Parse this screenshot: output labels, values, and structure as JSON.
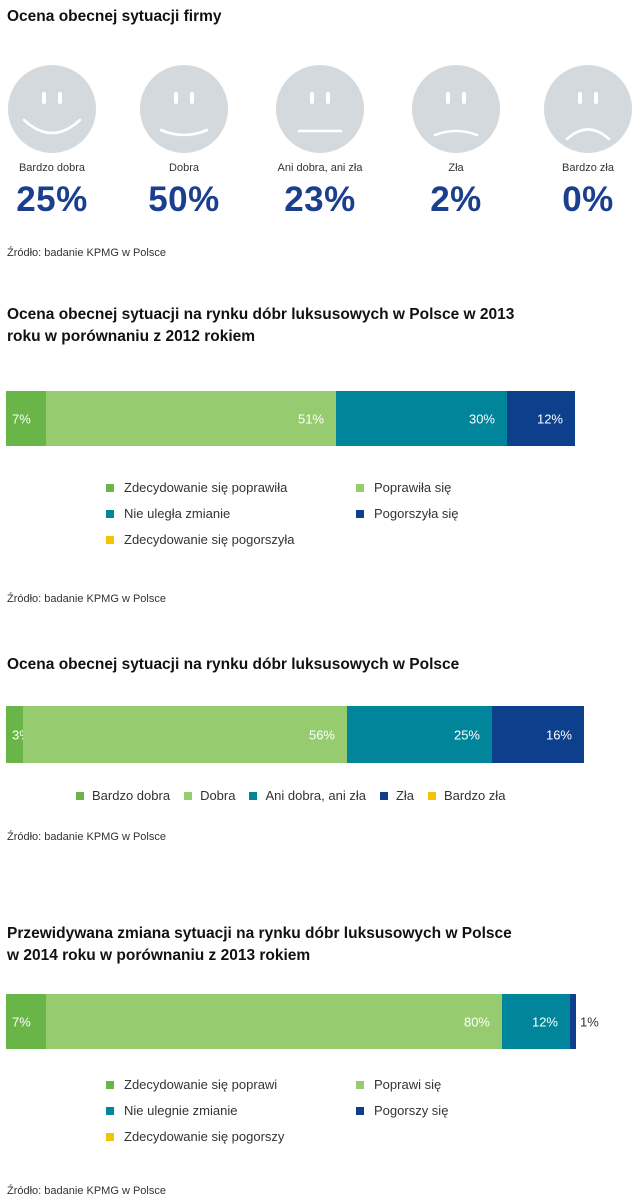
{
  "colors": {
    "bright_green": "#6ab547",
    "light_green": "#96cc6f",
    "teal": "#00859b",
    "dark_blue": "#0d3f8c",
    "yellow": "#f2c500",
    "face": "#d4d9de",
    "value_blue": "#1b3f8f"
  },
  "section1": {
    "title": "Ocena obecnej sytuacji firmy",
    "faces": [
      {
        "icon": "very-happy-face-icon",
        "label": "Bardzo dobra",
        "value": "25%"
      },
      {
        "icon": "happy-face-icon",
        "label": "Dobra",
        "value": "50%"
      },
      {
        "icon": "neutral-face-icon",
        "label": "Ani dobra, ani zła",
        "value": "23%"
      },
      {
        "icon": "sad-face-icon",
        "label": "Zła",
        "value": "2%"
      },
      {
        "icon": "very-sad-face-icon",
        "label": "Bardzo zła",
        "value": "0%"
      }
    ],
    "source": "Źródło: badanie KPMG w Polsce"
  },
  "chart2": {
    "title": "Ocena obecnej sytuacji na rynku dóbr luksusowych w Polsce w 2013\nroku w porównaniu z 2012 rokiem",
    "source": "Źródło: badanie KPMG w Polsce",
    "legend": [
      "Zdecydowanie się poprawiła",
      "Poprawiła się",
      "Nie uległa zmianie",
      "Pogorszyła się",
      "Zdecydowanie się pogorszyła"
    ]
  },
  "chart3": {
    "title": "Ocena obecnej sytuacji na rynku dóbr luksusowych w Polsce",
    "source": "Źródło: badanie KPMG w Polsce",
    "legend": [
      "Bardzo dobra",
      "Dobra",
      "Ani dobra, ani zła",
      "Zła",
      "Bardzo zła"
    ]
  },
  "chart4": {
    "title": "Przewidywana zmiana sytuacji na rynku dóbr luksusowych w Polsce\nw 2014 roku w porównaniu z 2013 rokiem",
    "source": "Źródło: badanie KPMG w Polsce",
    "legend": [
      "Zdecydowanie się poprawi",
      "Poprawi się",
      "Nie ulegnie zmianie",
      "Pogorszy się",
      "Zdecydowanie się pogorszy"
    ]
  },
  "chart_data": [
    {
      "type": "bar",
      "orientation": "horizontal-stacked",
      "title": "Ocena obecnej sytuacji firmy",
      "categories": [
        "Bardzo dobra",
        "Dobra",
        "Ani dobra, ani zła",
        "Zła",
        "Bardzo zła"
      ],
      "values": [
        25,
        50,
        23,
        2,
        0
      ],
      "value_labels": [
        "25%",
        "50%",
        "23%",
        "2%",
        "0%"
      ]
    },
    {
      "type": "bar",
      "orientation": "horizontal-stacked",
      "title": "Ocena obecnej sytuacji na rynku dóbr luksusowych w Polsce w 2013 roku w porównaniu z 2012 rokiem",
      "series": [
        {
          "name": "Zdecydowanie się poprawiła",
          "value": 7,
          "label": "7%",
          "color": "#6ab547"
        },
        {
          "name": "Poprawiła się",
          "value": 51,
          "label": "51%",
          "color": "#96cc6f"
        },
        {
          "name": "Nie uległa zmianie",
          "value": 30,
          "label": "30%",
          "color": "#00859b"
        },
        {
          "name": "Pogorszyła się",
          "value": 12,
          "label": "12%",
          "color": "#0d3f8c"
        },
        {
          "name": "Zdecydowanie się pogorszyła",
          "value": 0,
          "label": "",
          "color": "#f2c500"
        }
      ]
    },
    {
      "type": "bar",
      "orientation": "horizontal-stacked",
      "title": "Ocena obecnej sytuacji na rynku dóbr luksusowych w Polsce",
      "series": [
        {
          "name": "Bardzo dobra",
          "value": 3,
          "label": "3%",
          "color": "#6ab547"
        },
        {
          "name": "Dobra",
          "value": 56,
          "label": "56%",
          "color": "#96cc6f"
        },
        {
          "name": "Ani dobra, ani zła",
          "value": 25,
          "label": "25%",
          "color": "#00859b"
        },
        {
          "name": "Zła",
          "value": 16,
          "label": "16%",
          "color": "#0d3f8c"
        },
        {
          "name": "Bardzo zła",
          "value": 0,
          "label": "",
          "color": "#f2c500"
        }
      ]
    },
    {
      "type": "bar",
      "orientation": "horizontal-stacked",
      "title": "Przewidywana zmiana sytuacji na rynku dóbr luksusowych w Polsce w 2014 roku w porównaniu z 2013 rokiem",
      "series": [
        {
          "name": "Zdecydowanie się poprawi",
          "value": 7,
          "label": "7%",
          "color": "#6ab547"
        },
        {
          "name": "Poprawi się",
          "value": 80,
          "label": "80%",
          "color": "#96cc6f"
        },
        {
          "name": "Nie ulegnie zmianie",
          "value": 12,
          "label": "12%",
          "color": "#00859b"
        },
        {
          "name": "Pogorszy się",
          "value": 1,
          "label": "1%",
          "color": "#0d3f8c"
        },
        {
          "name": "Zdecydowanie się pogorszy",
          "value": 0,
          "label": "",
          "color": "#f2c500"
        }
      ]
    }
  ]
}
